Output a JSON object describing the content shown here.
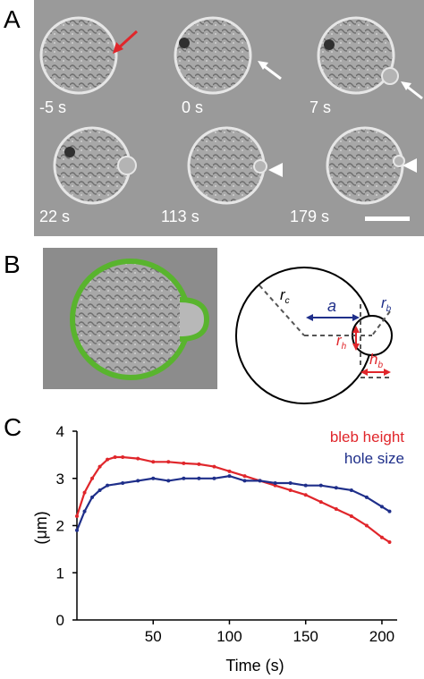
{
  "panels": {
    "a": {
      "letter": "A",
      "times": [
        "-5 s",
        "0 s",
        "7 s",
        "22 s",
        "113 s",
        "179 s"
      ]
    },
    "b": {
      "letter": "B",
      "labels": {
        "rc": "r",
        "rc_sub": "c",
        "a": "a",
        "rb": "r",
        "rb_sub": "b",
        "rh": "r",
        "rh_sub": "h",
        "hb": "h",
        "hb_sub": "b"
      }
    },
    "c": {
      "letter": "C"
    }
  },
  "colors": {
    "bleb": "#e0262b",
    "hole": "#1f2f8a",
    "green": "#59b42e"
  },
  "chart_data": {
    "type": "line",
    "xlabel": "Time (s)",
    "ylabel": "(μm)",
    "xlim": [
      0,
      210
    ],
    "ylim": [
      0,
      4
    ],
    "xticks": [
      50,
      100,
      150,
      200
    ],
    "yticks": [
      0,
      1,
      2,
      3,
      4
    ],
    "legend_placement": "top-right",
    "series": [
      {
        "name": "bleb height",
        "color": "#e0262b",
        "x": [
          0,
          5,
          10,
          15,
          20,
          25,
          30,
          40,
          50,
          60,
          70,
          80,
          90,
          100,
          110,
          120,
          130,
          140,
          150,
          160,
          170,
          180,
          190,
          200,
          205
        ],
        "y": [
          2.2,
          2.7,
          3.0,
          3.25,
          3.4,
          3.45,
          3.45,
          3.42,
          3.35,
          3.35,
          3.32,
          3.3,
          3.25,
          3.15,
          3.05,
          2.95,
          2.85,
          2.75,
          2.65,
          2.5,
          2.35,
          2.2,
          2.0,
          1.75,
          1.65
        ]
      },
      {
        "name": "hole size",
        "color": "#1f2f8a",
        "x": [
          0,
          5,
          10,
          15,
          20,
          30,
          40,
          50,
          60,
          70,
          80,
          90,
          100,
          110,
          120,
          130,
          140,
          150,
          160,
          170,
          180,
          190,
          200,
          205
        ],
        "y": [
          1.9,
          2.3,
          2.6,
          2.75,
          2.85,
          2.9,
          2.95,
          3.0,
          2.95,
          3.0,
          3.0,
          3.0,
          3.05,
          2.95,
          2.95,
          2.9,
          2.9,
          2.85,
          2.85,
          2.8,
          2.75,
          2.6,
          2.4,
          2.3
        ]
      }
    ]
  }
}
